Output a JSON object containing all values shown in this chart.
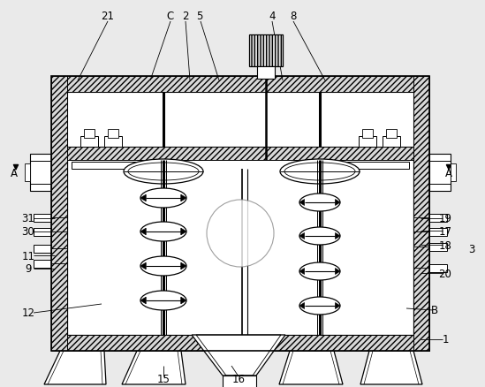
{
  "bg_color": "#eaeaea",
  "figsize": [
    5.49,
    4.39
  ],
  "dpi": 100,
  "labels": [
    [
      "21",
      122,
      18
    ],
    [
      "C",
      192,
      18
    ],
    [
      "2",
      210,
      18
    ],
    [
      "5",
      226,
      18
    ],
    [
      "4",
      308,
      18
    ],
    [
      "8",
      332,
      18
    ],
    [
      "A",
      16,
      197
    ],
    [
      "A",
      508,
      197
    ],
    [
      "31",
      32,
      248
    ],
    [
      "30",
      32,
      263
    ],
    [
      "11",
      32,
      290
    ],
    [
      "9",
      32,
      305
    ],
    [
      "12",
      32,
      355
    ],
    [
      "19",
      504,
      248
    ],
    [
      "17",
      504,
      262
    ],
    [
      "18",
      504,
      278
    ],
    [
      "3",
      534,
      282
    ],
    [
      "20",
      504,
      310
    ],
    [
      "B",
      492,
      352
    ],
    [
      "1",
      504,
      385
    ],
    [
      "15",
      185,
      430
    ],
    [
      "16",
      270,
      430
    ]
  ],
  "leader_lines": [
    [
      122,
      25,
      88,
      92
    ],
    [
      193,
      25,
      170,
      92
    ],
    [
      210,
      25,
      215,
      92
    ],
    [
      227,
      25,
      248,
      92
    ],
    [
      308,
      25,
      320,
      92
    ],
    [
      332,
      25,
      368,
      92
    ],
    [
      38,
      248,
      62,
      248
    ],
    [
      38,
      263,
      62,
      263
    ],
    [
      38,
      290,
      62,
      290
    ],
    [
      38,
      305,
      62,
      305
    ],
    [
      38,
      355,
      115,
      345
    ],
    [
      501,
      248,
      476,
      248
    ],
    [
      501,
      262,
      476,
      262
    ],
    [
      501,
      278,
      476,
      278
    ],
    [
      501,
      310,
      476,
      310
    ],
    [
      490,
      352,
      460,
      350
    ],
    [
      501,
      385,
      476,
      385
    ],
    [
      185,
      427,
      185,
      415
    ],
    [
      270,
      427,
      262,
      415
    ]
  ]
}
